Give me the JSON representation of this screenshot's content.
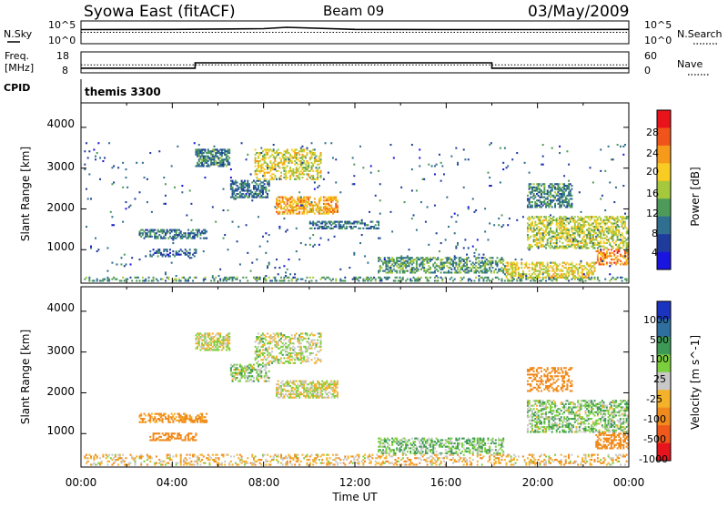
{
  "header": {
    "station": "Syowa East (fitACF)",
    "beam": "Beam 09",
    "date": "03/May/2009"
  },
  "top_panels": {
    "nsky_label": "N.Sky",
    "nsky_ticks": [
      "10^5",
      "10^0"
    ],
    "nsearch_label": "N.Search",
    "nsearch_ticks": [
      "10^5",
      "10^0"
    ],
    "freq_label_1": "Freq.",
    "freq_label_2": "[MHz]",
    "freq_ticks": [
      "18",
      "8"
    ],
    "nave_label": "Nave",
    "nave_ticks": [
      "60",
      "0"
    ],
    "cpid_label": "CPID",
    "cpid_value": "themis 3300"
  },
  "axes": {
    "ylabel": "Slant Range [km]",
    "yticks": [
      "4000",
      "3000",
      "2000",
      "1000"
    ],
    "xticks": [
      "00:00",
      "04:00",
      "08:00",
      "12:00",
      "16:00",
      "20:00",
      "00:00"
    ],
    "xlabel": "Time UT"
  },
  "power_scale": {
    "label": "Power [dB]",
    "ticks": [
      "28",
      "24",
      "20",
      "16",
      "12",
      "8",
      "4"
    ],
    "colors": [
      "#e8131b",
      "#f0541a",
      "#f59a1a",
      "#f8cc22",
      "#a5c83c",
      "#4e9b59",
      "#2f6f8f",
      "#1f3c9c",
      "#1a14e0"
    ]
  },
  "velocity_scale": {
    "label": "Velocity [m s^-1]",
    "ticks": [
      "1000",
      "500",
      "100",
      "25",
      "-25",
      "-100",
      "-500",
      "-1000"
    ],
    "colors": [
      "#1b34c0",
      "#2f6fa0",
      "#3d9a56",
      "#7ccf3c",
      "#c8c8c8",
      "#f4b12a",
      "#f08a1c",
      "#ef5a1c",
      "#e5141d"
    ]
  },
  "chart_data": [
    {
      "type": "line",
      "title": "N.Sky / N.Search",
      "x_range_hours": [
        0,
        24
      ],
      "series": [
        {
          "name": "N.Sky",
          "x": [
            0,
            4,
            8,
            9,
            12,
            16,
            20,
            24
          ],
          "y": [
            0.62,
            0.63,
            0.66,
            0.72,
            0.63,
            0.62,
            0.62,
            0.63
          ]
        },
        {
          "name": "N.Search",
          "x": [
            0,
            24
          ],
          "y": [
            0.5,
            0.5
          ]
        }
      ]
    },
    {
      "type": "line",
      "title": "Freq. / Nave",
      "x_range_hours": [
        0,
        24
      ],
      "series": [
        {
          "name": "Freq.",
          "step": true,
          "x": [
            0,
            5,
            5,
            18,
            18,
            24
          ],
          "y": [
            10.2,
            10.2,
            12.8,
            12.8,
            10.2,
            10.2
          ]
        },
        {
          "name": "Nave",
          "x": [
            0,
            24
          ],
          "y": [
            23,
            23
          ]
        }
      ]
    },
    {
      "type": "heatmap",
      "title": "Power [dB]",
      "xlabel": "Time UT",
      "ylabel": "Slant Range [km]",
      "x_range_hours": [
        0,
        24
      ],
      "y_range_km": [
        180,
        4600
      ],
      "value_range": [
        0,
        30
      ],
      "regions": [
        {
          "t": [
            0.1,
            23.9
          ],
          "r": [
            200,
            320
          ],
          "v": 10,
          "d": 0.35
        },
        {
          "t": [
            5.0,
            6.5
          ],
          "r": [
            3000,
            3450
          ],
          "v": 9,
          "d": 0.7
        },
        {
          "t": [
            6.5,
            8.2
          ],
          "r": [
            2250,
            2700
          ],
          "v": 7,
          "d": 0.55
        },
        {
          "t": [
            7.6,
            10.5
          ],
          "r": [
            2700,
            3450
          ],
          "v": 17,
          "d": 0.45
        },
        {
          "t": [
            8.5,
            11.2
          ],
          "r": [
            1850,
            2300
          ],
          "v": 21,
          "d": 0.6
        },
        {
          "t": [
            10.0,
            13.0
          ],
          "r": [
            1500,
            1700
          ],
          "v": 8,
          "d": 0.5
        },
        {
          "t": [
            2.5,
            5.5
          ],
          "r": [
            1250,
            1500
          ],
          "v": 8,
          "d": 0.55
        },
        {
          "t": [
            3.0,
            5.0
          ],
          "r": [
            800,
            1000
          ],
          "v": 6,
          "d": 0.4
        },
        {
          "t": [
            13.0,
            18.5
          ],
          "r": [
            400,
            800
          ],
          "v": 11,
          "d": 0.5
        },
        {
          "t": [
            18.5,
            22.5
          ],
          "r": [
            300,
            700
          ],
          "v": 18,
          "d": 0.45
        },
        {
          "t": [
            19.5,
            24.0
          ],
          "r": [
            1000,
            1800
          ],
          "v": 16,
          "d": 0.55
        },
        {
          "t": [
            19.5,
            21.5
          ],
          "r": [
            2000,
            2600
          ],
          "v": 9,
          "d": 0.5
        },
        {
          "t": [
            22.5,
            24.0
          ],
          "r": [
            600,
            1000
          ],
          "v": 24,
          "d": 0.5
        },
        {
          "t": [
            0,
            24
          ],
          "r": [
            300,
            3600
          ],
          "v": 6,
          "d": 0.015
        }
      ]
    },
    {
      "type": "heatmap",
      "title": "Velocity [m s^-1]",
      "xlabel": "Time UT",
      "ylabel": "Slant Range [km]",
      "x_range_hours": [
        0,
        24
      ],
      "y_range_km": [
        180,
        4600
      ],
      "value_range": [
        -1000,
        1000
      ],
      "regions": [
        {
          "t": [
            0.1,
            23.9
          ],
          "r": [
            200,
            500
          ],
          "v": -60,
          "d": 0.3
        },
        {
          "t": [
            5.0,
            6.5
          ],
          "r": [
            3000,
            3450
          ],
          "v": 0,
          "d": 0.6
        },
        {
          "t": [
            6.5,
            8.2
          ],
          "r": [
            2250,
            2700
          ],
          "v": 50,
          "d": 0.5
        },
        {
          "t": [
            7.6,
            10.5
          ],
          "r": [
            2700,
            3450
          ],
          "v": 20,
          "d": 0.4
        },
        {
          "t": [
            8.5,
            11.2
          ],
          "r": [
            1850,
            2300
          ],
          "v": 0,
          "d": 0.6
        },
        {
          "t": [
            2.5,
            5.5
          ],
          "r": [
            1250,
            1500
          ],
          "v": -150,
          "d": 0.5
        },
        {
          "t": [
            3.0,
            5.0
          ],
          "r": [
            800,
            1000
          ],
          "v": -300,
          "d": 0.5
        },
        {
          "t": [
            13.0,
            18.5
          ],
          "r": [
            500,
            900
          ],
          "v": 80,
          "d": 0.45
        },
        {
          "t": [
            19.5,
            24.0
          ],
          "r": [
            1000,
            1800
          ],
          "v": 60,
          "d": 0.5
        },
        {
          "t": [
            19.5,
            21.5
          ],
          "r": [
            2000,
            2600
          ],
          "v": -200,
          "d": 0.4
        },
        {
          "t": [
            22.5,
            24.0
          ],
          "r": [
            600,
            1000
          ],
          "v": -400,
          "d": 0.5
        }
      ]
    }
  ]
}
